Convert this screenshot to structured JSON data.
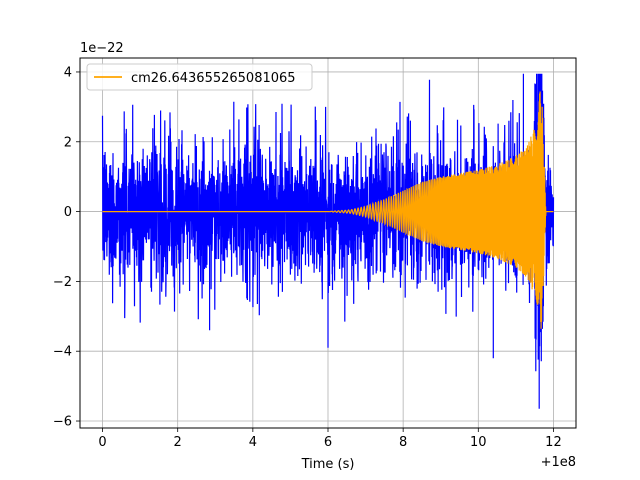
{
  "chart_data": {
    "type": "line",
    "title": "",
    "xlabel": "Time (s)",
    "ylabel": "",
    "x_offset_label": "+1e8",
    "y_scale_label": "1e−22",
    "xlim": [
      -0.6,
      12.6
    ],
    "ylim": [
      -6.2,
      4.4
    ],
    "x_ticks": [
      0,
      2,
      4,
      6,
      8,
      10,
      12
    ],
    "y_ticks": [
      -6,
      -4,
      -2,
      0,
      2,
      4
    ],
    "y_tick_labels": [
      "−6",
      "−4",
      "−2",
      "0",
      "2",
      "4"
    ],
    "grid": true,
    "legend_position": "top-left",
    "series": [
      {
        "name": "",
        "color": "#0000ff",
        "kind": "noise-strain",
        "x_range": [
          0,
          12
        ],
        "typical_envelope": 1.8,
        "max": 3.95,
        "min": -5.65
      },
      {
        "name": "cm26.643655265081065",
        "color": "#ffa500",
        "kind": "chirp-template",
        "x": [
          0,
          6.0,
          6.6,
          7.0,
          7.5,
          8.0,
          8.5,
          9.0,
          9.5,
          10.0,
          10.5,
          11.0,
          11.3,
          11.5,
          11.6,
          11.65,
          11.7,
          11.8,
          12.0
        ],
        "envelope": [
          0,
          0,
          0.05,
          0.15,
          0.35,
          0.6,
          0.85,
          1.0,
          1.1,
          1.2,
          1.35,
          1.6,
          1.9,
          2.4,
          3.0,
          3.6,
          3.1,
          0,
          0
        ]
      }
    ]
  }
}
